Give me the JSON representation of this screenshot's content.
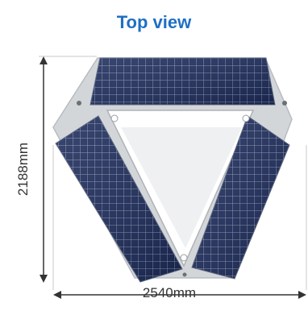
{
  "title": "Top view",
  "dimensions": {
    "width": "2540mm",
    "height": "2188mm"
  },
  "colors": {
    "title": "#1f6fc4",
    "panel": "#17234d",
    "frame": "#c9cccf",
    "dimension_line": "#333333"
  }
}
